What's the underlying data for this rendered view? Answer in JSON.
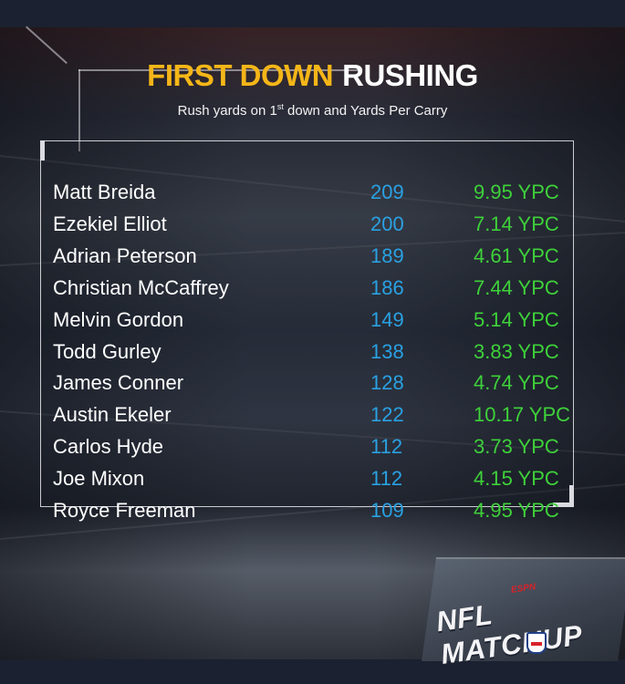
{
  "title": {
    "accent": "FIRST DOWN",
    "main": "RUSHING"
  },
  "subtitle": {
    "before": "Rush yards on 1",
    "sup": "st",
    "after": " down and Yards Per Carry"
  },
  "rows": [
    {
      "player": "Matt Breida",
      "yards": "209",
      "ypc": "9.95 YPC"
    },
    {
      "player": "Ezekiel Elliot",
      "yards": "200",
      "ypc": "7.14 YPC"
    },
    {
      "player": "Adrian Peterson",
      "yards": "189",
      "ypc": "4.61 YPC"
    },
    {
      "player": "Christian McCaffrey",
      "yards": "186",
      "ypc": "7.44 YPC"
    },
    {
      "player": "Melvin Gordon",
      "yards": "149",
      "ypc": "5.14 YPC"
    },
    {
      "player": "Todd Gurley",
      "yards": "138",
      "ypc": "3.83 YPC"
    },
    {
      "player": "James Conner",
      "yards": "128",
      "ypc": "4.74 YPC"
    },
    {
      "player": "Austin Ekeler",
      "yards": "122",
      "ypc": "10.17 YPC"
    },
    {
      "player": "Carlos Hyde",
      "yards": "112",
      "ypc": "3.73 YPC"
    },
    {
      "player": "Joe Mixon",
      "yards": "112",
      "ypc": "4.15 YPC"
    },
    {
      "player": "Royce Freeman",
      "yards": "109",
      "ypc": "4.95 YPC"
    }
  ],
  "logo": {
    "network": "ESPN",
    "show": "NFL MATCHUP",
    "icon": "nfl-shield-icon"
  },
  "colors": {
    "title_accent": "#f5b618",
    "yards": "#2aa1e2",
    "ypc": "#3ed13a",
    "text": "#ffffff"
  }
}
